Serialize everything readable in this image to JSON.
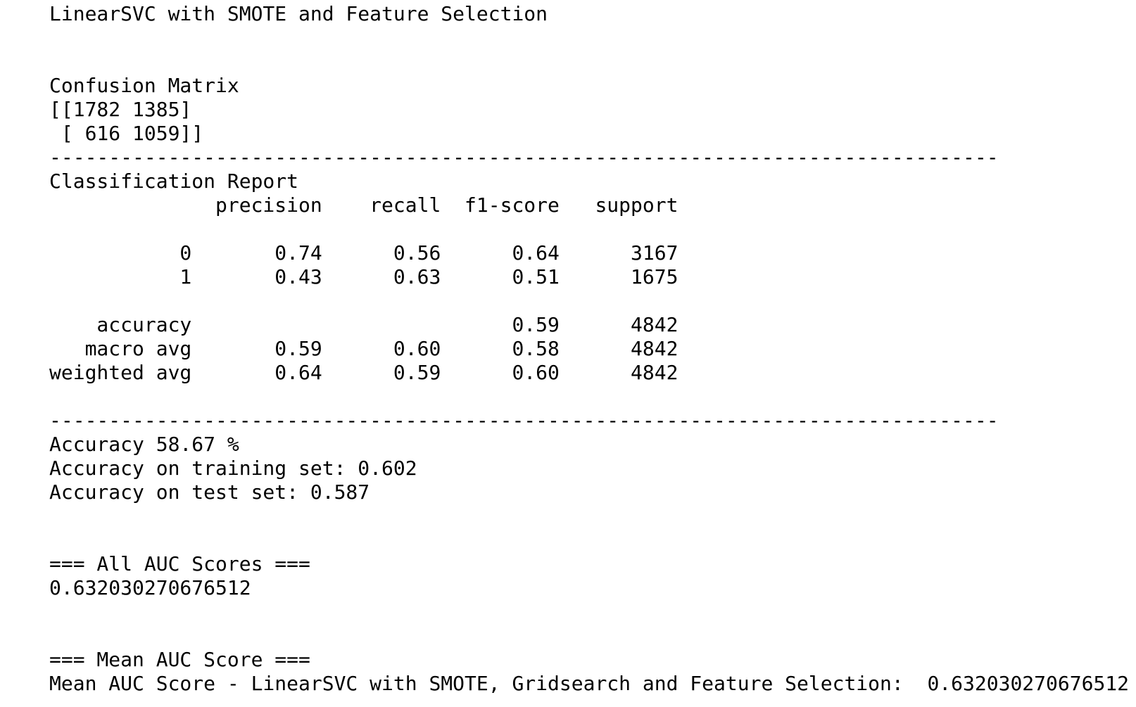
{
  "output": {
    "lines": [
      "LinearSVC with SMOTE and Feature Selection",
      "",
      "",
      "Confusion Matrix",
      "[[1782 1385]",
      " [ 616 1059]]",
      "--------------------------------------------------------------------------------",
      "Classification Report",
      "              precision    recall  f1-score   support",
      "",
      "           0       0.74      0.56      0.64      3167",
      "           1       0.43      0.63      0.51      1675",
      "",
      "    accuracy                           0.59      4842",
      "   macro avg       0.59      0.60      0.58      4842",
      "weighted avg       0.64      0.59      0.60      4842",
      "",
      "--------------------------------------------------------------------------------",
      "Accuracy 58.67 %",
      "Accuracy on training set: 0.602",
      "Accuracy on test set: 0.587",
      "",
      "",
      "=== All AUC Scores ===",
      "0.632030270676512",
      "",
      "",
      "=== Mean AUC Score ===",
      "Mean AUC Score - LinearSVC with SMOTE, Gridsearch and Feature Selection:  0.632030270676512"
    ]
  }
}
